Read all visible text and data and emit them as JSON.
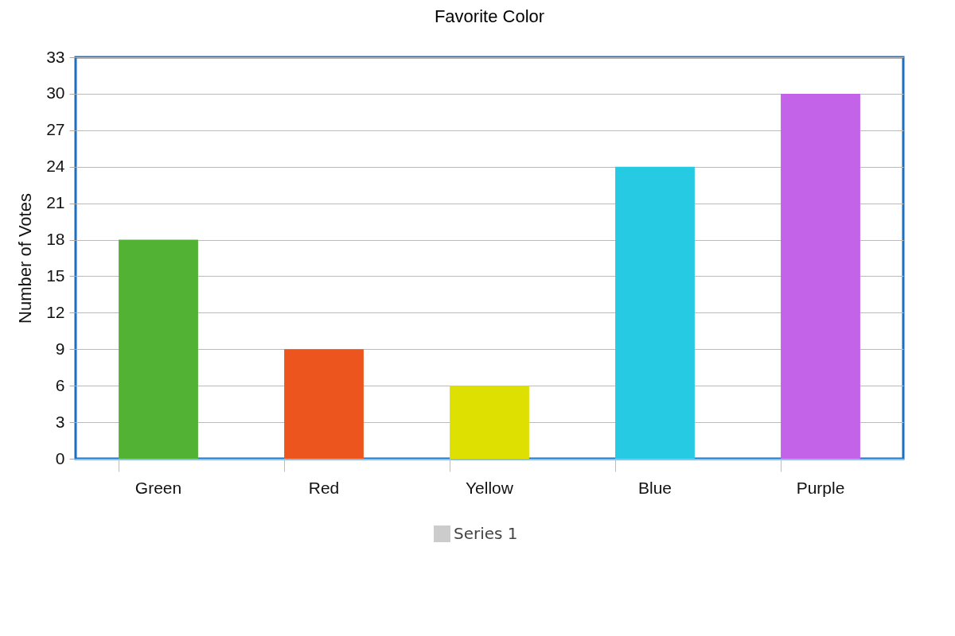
{
  "chart_data": {
    "type": "bar",
    "title": "Favorite Color",
    "ylabel": "Number of Votes",
    "categories": [
      "Green",
      "Red",
      "Yellow",
      "Blue",
      "Purple"
    ],
    "series": [
      {
        "name": "Series 1",
        "values": [
          18,
          9,
          6,
          24,
          30
        ]
      }
    ],
    "colors": [
      "#52b233",
      "#ec561e",
      "#dde000",
      "#26cae3",
      "#c263e8"
    ],
    "ylim": [
      0,
      33
    ],
    "yticks": [
      0,
      3,
      6,
      9,
      12,
      15,
      18,
      21,
      24,
      27,
      30,
      33
    ],
    "grid": "y",
    "legend": "bottom"
  }
}
